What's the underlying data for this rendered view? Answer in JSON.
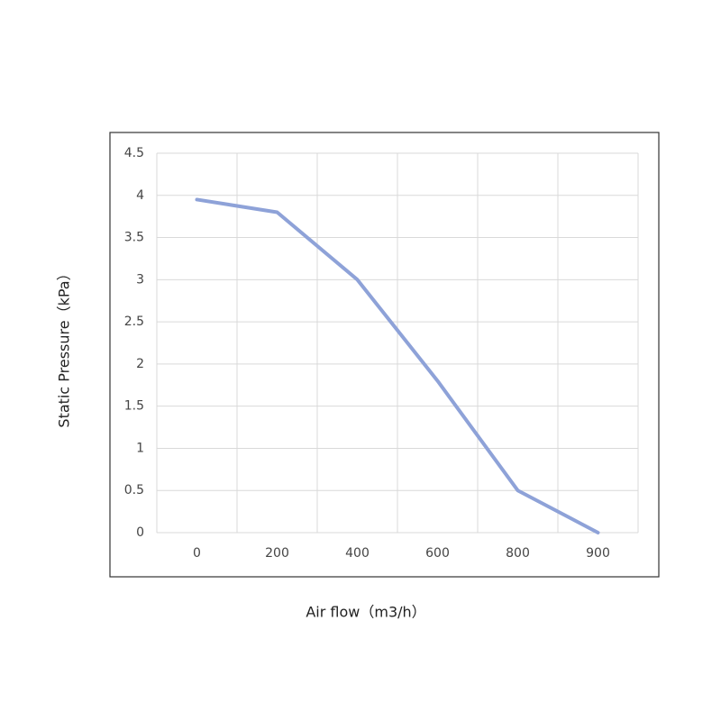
{
  "chart_data": {
    "type": "line",
    "x_label": "Air flow（m3/h）",
    "y_label": "Static Pressure（kPa）",
    "categories": [
      "0",
      "200",
      "400",
      "600",
      "800",
      "900"
    ],
    "series": [
      {
        "name": "Static Pressure",
        "color": "#8ea2d8",
        "values": [
          3.95,
          3.8,
          3.0,
          1.8,
          0.5,
          0
        ]
      }
    ],
    "ylim": [
      0,
      4.5
    ],
    "yticks": [
      0,
      0.5,
      1,
      1.5,
      2,
      2.5,
      3,
      3.5,
      4,
      4.5
    ],
    "grid": true
  }
}
